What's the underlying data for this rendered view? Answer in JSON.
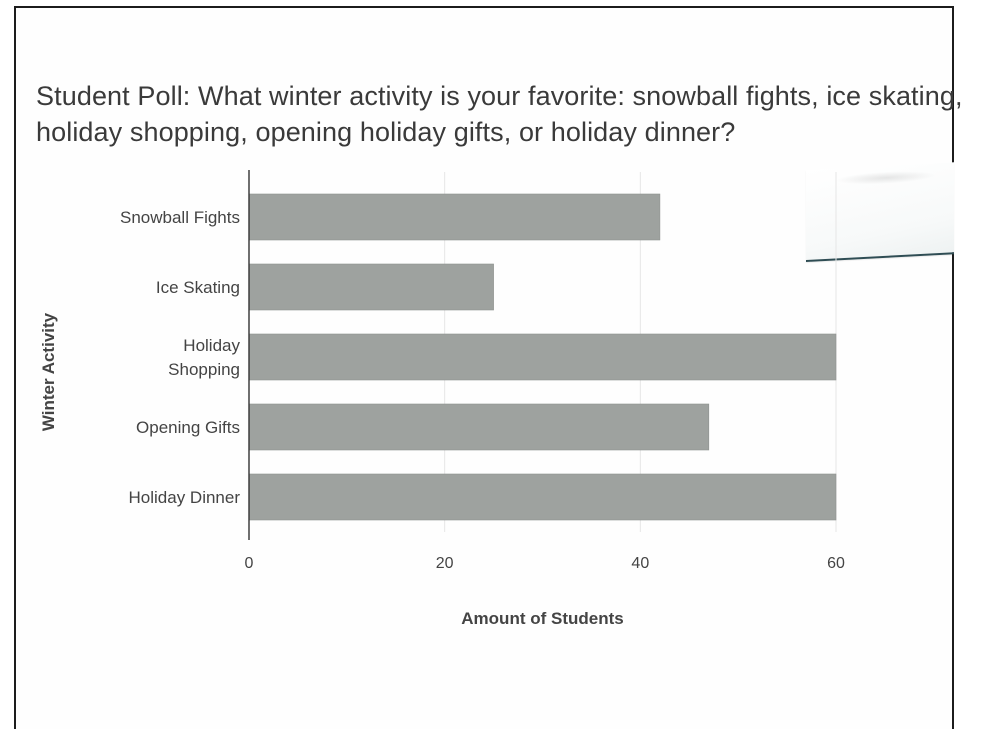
{
  "chart_data": {
    "type": "bar",
    "orientation": "horizontal",
    "title": "Student Poll: What winter activity is your favorite: snowball fights, ice skating, holiday shopping, opening holiday gifts, or holiday dinner?",
    "categories": [
      "Snowball Fights",
      "Ice Skating",
      "Holiday Shopping",
      "Opening Gifts",
      "Holiday Dinner"
    ],
    "category_lines": [
      [
        "Snowball Fights"
      ],
      [
        "Ice Skating"
      ],
      [
        "Holiday",
        "Shopping"
      ],
      [
        "Opening Gifts"
      ],
      [
        "Holiday Dinner"
      ]
    ],
    "values": [
      42,
      25,
      60,
      47,
      60
    ],
    "xlabel": "Amount of Students",
    "ylabel": "Winter Activity",
    "xlim": [
      0,
      60
    ],
    "xticks": [
      0,
      20,
      40,
      60
    ],
    "grid": true,
    "bar_color": "#9ea29f"
  }
}
